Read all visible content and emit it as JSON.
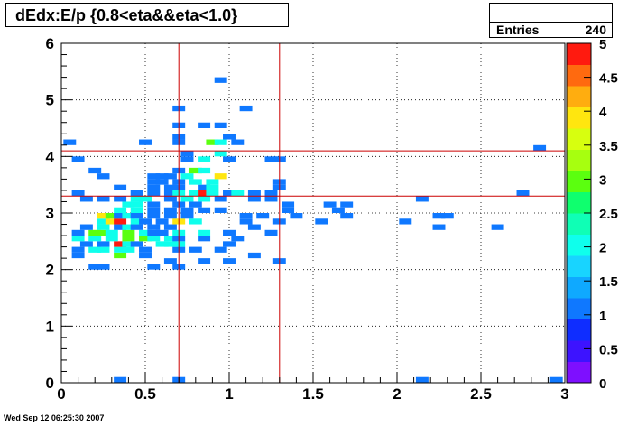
{
  "title": "dEdx:E/p {0.8<eta&&eta<1.0}",
  "stats": {
    "label": "Entries",
    "value": "240"
  },
  "timestamp": "Wed Sep 12 06:25:30 2007",
  "chart_data": {
    "type": "heatmap",
    "xlim": [
      0,
      3
    ],
    "ylim": [
      0,
      6
    ],
    "bin_width_x": 0.075,
    "bin_width_y": 0.1,
    "x_ticks": [
      "0",
      "0.5",
      "1",
      "1.5",
      "2",
      "2.5",
      "3"
    ],
    "y_ticks": [
      "0",
      "1",
      "2",
      "3",
      "4",
      "5",
      "6"
    ],
    "grid": true,
    "zlim": [
      0,
      5
    ],
    "z_ticks": [
      "0",
      "0.5",
      "1",
      "1.5",
      "2",
      "2.5",
      "3",
      "3.5",
      "4",
      "4.5",
      "5"
    ],
    "palette": [
      "#7e0fff",
      "#3d13ff",
      "#0f2dff",
      "#0f78ff",
      "#0fa9ff",
      "#18d4ff",
      "#0fffec",
      "#0fffb5",
      "#0fff6e",
      "#5bff0f",
      "#a7ff0f",
      "#d7ff0f",
      "#ffe60f",
      "#ffad0f",
      "#ff6a0f",
      "#ff1a0f"
    ],
    "cut_lines_color": "#cc0000",
    "cut_lines": {
      "x": [
        0.7,
        1.3
      ],
      "y": [
        3.3,
        4.1
      ]
    },
    "bins": [
      [
        0.35,
        0.05,
        1
      ],
      [
        0.7,
        0.05,
        1
      ],
      [
        2.15,
        0.05,
        1
      ],
      [
        2.95,
        0.05,
        1
      ],
      [
        0.2,
        2.05,
        1
      ],
      [
        0.25,
        2.05,
        1
      ],
      [
        0.55,
        2.05,
        1
      ],
      [
        0.7,
        2.05,
        1
      ],
      [
        0.65,
        2.15,
        1
      ],
      [
        0.85,
        2.15,
        1
      ],
      [
        1.0,
        2.15,
        1
      ],
      [
        1.3,
        2.15,
        1
      ],
      [
        0.1,
        2.25,
        1
      ],
      [
        0.35,
        2.25,
        3
      ],
      [
        0.5,
        2.25,
        1
      ],
      [
        1.15,
        2.25,
        1
      ],
      [
        0.1,
        2.35,
        1
      ],
      [
        0.2,
        2.35,
        2
      ],
      [
        0.25,
        2.35,
        2
      ],
      [
        0.35,
        2.35,
        2
      ],
      [
        0.4,
        2.35,
        2
      ],
      [
        0.5,
        2.35,
        1
      ],
      [
        0.7,
        2.35,
        1
      ],
      [
        0.8,
        2.35,
        1
      ],
      [
        0.95,
        2.35,
        1
      ],
      [
        0.15,
        2.45,
        1
      ],
      [
        0.25,
        2.45,
        1
      ],
      [
        0.35,
        2.45,
        5
      ],
      [
        0.4,
        2.45,
        2
      ],
      [
        0.45,
        2.45,
        1
      ],
      [
        0.6,
        2.45,
        2
      ],
      [
        0.65,
        2.45,
        2
      ],
      [
        0.7,
        2.45,
        2
      ],
      [
        1.0,
        2.45,
        1
      ],
      [
        0.1,
        2.55,
        2
      ],
      [
        0.2,
        2.55,
        2
      ],
      [
        0.3,
        2.55,
        2
      ],
      [
        0.4,
        2.55,
        3
      ],
      [
        0.5,
        2.55,
        3
      ],
      [
        0.55,
        2.55,
        2
      ],
      [
        0.65,
        2.55,
        2
      ],
      [
        0.7,
        2.55,
        1
      ],
      [
        0.85,
        2.55,
        1
      ],
      [
        1.05,
        2.55,
        1
      ],
      [
        0.1,
        2.65,
        1
      ],
      [
        0.2,
        2.65,
        3
      ],
      [
        0.25,
        2.65,
        3
      ],
      [
        0.3,
        2.65,
        2
      ],
      [
        0.4,
        2.65,
        3
      ],
      [
        0.5,
        2.65,
        2
      ],
      [
        0.55,
        2.65,
        1
      ],
      [
        0.6,
        2.65,
        1
      ],
      [
        0.7,
        2.65,
        2
      ],
      [
        0.85,
        2.65,
        2
      ],
      [
        1.0,
        2.65,
        1
      ],
      [
        1.25,
        2.65,
        1
      ],
      [
        0.15,
        2.75,
        1
      ],
      [
        0.25,
        2.75,
        2
      ],
      [
        0.35,
        2.75,
        1
      ],
      [
        0.4,
        2.75,
        2
      ],
      [
        0.45,
        2.75,
        1
      ],
      [
        0.55,
        2.75,
        1
      ],
      [
        0.65,
        2.75,
        1
      ],
      [
        1.15,
        2.75,
        1
      ],
      [
        2.25,
        2.75,
        1
      ],
      [
        2.6,
        2.75,
        1
      ],
      [
        0.25,
        2.85,
        2
      ],
      [
        0.3,
        2.85,
        4
      ],
      [
        0.35,
        2.85,
        5
      ],
      [
        0.45,
        2.85,
        2
      ],
      [
        0.5,
        2.85,
        1
      ],
      [
        0.6,
        2.85,
        1
      ],
      [
        0.7,
        2.85,
        4
      ],
      [
        0.8,
        2.85,
        2
      ],
      [
        1.1,
        2.85,
        1
      ],
      [
        1.3,
        2.85,
        1
      ],
      [
        1.55,
        2.85,
        1
      ],
      [
        2.05,
        2.85,
        1
      ],
      [
        0.25,
        2.95,
        4
      ],
      [
        0.3,
        2.95,
        3
      ],
      [
        0.35,
        2.95,
        1
      ],
      [
        0.4,
        2.95,
        2
      ],
      [
        0.45,
        2.95,
        1
      ],
      [
        0.55,
        2.95,
        1
      ],
      [
        0.65,
        2.95,
        1
      ],
      [
        0.75,
        2.95,
        1
      ],
      [
        1.1,
        2.95,
        1
      ],
      [
        1.2,
        2.95,
        1
      ],
      [
        1.4,
        2.95,
        1
      ],
      [
        1.7,
        2.95,
        1
      ],
      [
        2.25,
        2.95,
        1
      ],
      [
        2.3,
        2.95,
        1
      ],
      [
        0.35,
        3.05,
        2
      ],
      [
        0.45,
        3.05,
        2
      ],
      [
        0.55,
        3.05,
        1
      ],
      [
        0.65,
        3.05,
        1
      ],
      [
        0.75,
        3.05,
        1
      ],
      [
        0.85,
        3.05,
        1
      ],
      [
        0.95,
        3.05,
        1
      ],
      [
        1.35,
        3.05,
        1
      ],
      [
        1.65,
        3.05,
        1
      ],
      [
        0.4,
        3.15,
        2
      ],
      [
        0.45,
        3.15,
        2
      ],
      [
        0.55,
        3.15,
        1
      ],
      [
        0.7,
        3.15,
        1
      ],
      [
        0.8,
        3.15,
        1
      ],
      [
        1.35,
        3.15,
        1
      ],
      [
        1.6,
        3.15,
        1
      ],
      [
        1.7,
        3.15,
        1
      ],
      [
        0.15,
        3.25,
        1
      ],
      [
        0.25,
        3.25,
        1
      ],
      [
        0.35,
        3.25,
        1
      ],
      [
        0.45,
        3.25,
        2
      ],
      [
        0.5,
        3.25,
        2
      ],
      [
        0.65,
        3.25,
        1
      ],
      [
        0.75,
        3.25,
        2
      ],
      [
        0.85,
        3.25,
        2
      ],
      [
        0.95,
        3.25,
        1
      ],
      [
        1.15,
        3.25,
        1
      ],
      [
        1.25,
        3.25,
        1
      ],
      [
        2.15,
        3.25,
        1
      ],
      [
        0.1,
        3.35,
        1
      ],
      [
        0.45,
        3.35,
        1
      ],
      [
        0.55,
        3.35,
        1
      ],
      [
        0.65,
        3.35,
        1
      ],
      [
        0.7,
        3.35,
        2
      ],
      [
        0.8,
        3.35,
        2
      ],
      [
        0.85,
        3.35,
        5
      ],
      [
        0.9,
        3.35,
        2
      ],
      [
        1.0,
        3.35,
        1
      ],
      [
        1.05,
        3.35,
        2
      ],
      [
        1.15,
        3.35,
        1
      ],
      [
        1.25,
        3.35,
        1
      ],
      [
        2.75,
        3.35,
        1
      ],
      [
        0.35,
        3.45,
        1
      ],
      [
        0.55,
        3.45,
        1
      ],
      [
        0.65,
        3.45,
        1
      ],
      [
        0.7,
        3.45,
        1
      ],
      [
        0.85,
        3.45,
        1
      ],
      [
        0.9,
        3.45,
        2
      ],
      [
        1.3,
        3.45,
        1
      ],
      [
        0.55,
        3.55,
        1
      ],
      [
        0.6,
        3.55,
        1
      ],
      [
        0.7,
        3.55,
        1
      ],
      [
        0.8,
        3.55,
        2
      ],
      [
        0.9,
        3.55,
        2
      ],
      [
        1.3,
        3.55,
        1
      ],
      [
        0.25,
        3.65,
        1
      ],
      [
        0.55,
        3.65,
        1
      ],
      [
        0.6,
        3.65,
        1
      ],
      [
        0.65,
        3.65,
        1
      ],
      [
        0.75,
        3.65,
        2
      ],
      [
        0.95,
        3.65,
        4
      ],
      [
        0.2,
        3.75,
        1
      ],
      [
        0.8,
        3.75,
        3
      ],
      [
        0.85,
        3.75,
        2
      ],
      [
        0.7,
        3.75,
        1
      ],
      [
        0.1,
        3.95,
        1
      ],
      [
        0.75,
        3.95,
        1
      ],
      [
        0.85,
        3.95,
        2
      ],
      [
        1.0,
        3.95,
        1
      ],
      [
        1.25,
        3.95,
        1
      ],
      [
        1.3,
        3.95,
        1
      ],
      [
        0.75,
        4.05,
        1
      ],
      [
        0.95,
        4.05,
        2
      ],
      [
        2.85,
        4.15,
        1
      ],
      [
        0.05,
        4.25,
        1
      ],
      [
        0.5,
        4.25,
        1
      ],
      [
        0.7,
        4.25,
        1
      ],
      [
        0.9,
        4.25,
        3
      ],
      [
        0.95,
        4.25,
        2
      ],
      [
        1.05,
        4.25,
        1
      ],
      [
        0.7,
        4.35,
        1
      ],
      [
        1.0,
        4.35,
        1
      ],
      [
        0.7,
        4.55,
        1
      ],
      [
        0.85,
        4.55,
        1
      ],
      [
        0.95,
        4.55,
        1
      ],
      [
        0.7,
        4.85,
        1
      ],
      [
        1.1,
        4.85,
        1
      ],
      [
        0.95,
        5.35,
        1
      ]
    ]
  }
}
